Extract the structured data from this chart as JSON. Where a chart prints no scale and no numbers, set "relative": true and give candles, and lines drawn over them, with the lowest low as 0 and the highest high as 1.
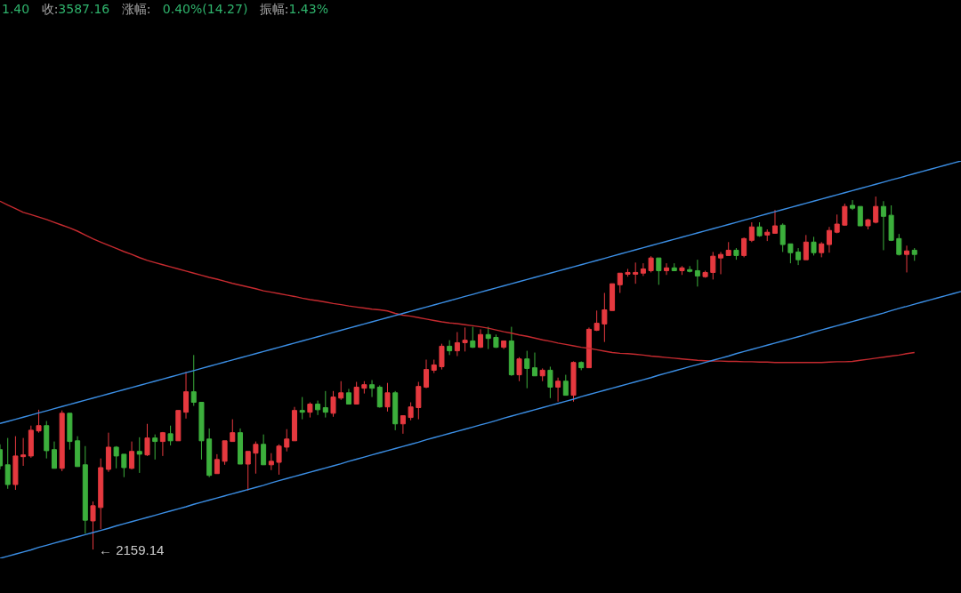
{
  "chart_data": {
    "type": "candlestick",
    "relative": true,
    "title": "1.40 收:3587.16 涨幅: 0.40%(14.27) 振幅:1.43%",
    "categories": [
      null,
      null,
      null,
      null,
      null,
      null,
      null,
      null,
      null,
      null,
      null,
      null,
      null,
      null,
      null,
      null,
      null,
      null,
      null,
      null,
      null,
      null,
      null,
      null,
      null,
      null,
      null,
      null,
      null,
      null,
      null,
      null,
      null,
      null,
      null,
      null,
      null,
      null,
      null,
      null,
      null,
      null,
      null,
      null,
      null,
      null,
      null,
      null,
      null,
      null,
      null,
      null,
      null,
      null,
      null,
      null,
      null,
      null,
      null,
      null,
      null,
      null,
      null,
      null,
      null,
      null,
      null,
      null,
      null,
      null,
      null,
      null,
      null,
      null,
      null,
      null,
      null,
      null,
      null,
      null,
      null,
      null,
      null,
      null,
      null,
      null,
      null,
      null,
      null,
      null,
      null,
      null,
      null,
      null,
      null,
      null,
      null,
      null,
      null,
      null,
      null,
      null,
      null,
      null,
      null,
      null,
      null,
      null,
      null,
      null,
      null,
      null,
      null,
      null,
      null,
      null,
      null,
      null,
      null,
      null,
      null,
      null,
      null,
      null,
      null
    ],
    "ohlc": [
      [
        0.283,
        0.298,
        0.227,
        0.237
      ],
      [
        0.24,
        0.316,
        0.172,
        0.184
      ],
      [
        0.184,
        0.321,
        0.169,
        0.265
      ],
      [
        0.263,
        0.316,
        0.237,
        0.268
      ],
      [
        0.265,
        0.351,
        0.26,
        0.338
      ],
      [
        0.336,
        0.396,
        0.331,
        0.351
      ],
      [
        0.351,
        0.364,
        0.258,
        0.28
      ],
      [
        0.283,
        0.306,
        0.23,
        0.23
      ],
      [
        0.23,
        0.394,
        0.222,
        0.386
      ],
      [
        0.386,
        0.386,
        0.283,
        0.306
      ],
      [
        0.308,
        0.321,
        0.235,
        0.235
      ],
      [
        0.24,
        0.293,
        0.045,
        0.083
      ],
      [
        0.081,
        0.136,
        0,
        0.124
      ],
      [
        0.119,
        0.258,
        0.058,
        0.232
      ],
      [
        0.227,
        0.331,
        0.22,
        0.29
      ],
      [
        0.29,
        0.293,
        0.23,
        0.265
      ],
      [
        0.27,
        0.27,
        0.205,
        0.232
      ],
      [
        0.23,
        0.306,
        0.227,
        0.278
      ],
      [
        0.278,
        0.318,
        0.217,
        0.27
      ],
      [
        0.268,
        0.356,
        0.265,
        0.316
      ],
      [
        0.316,
        0.326,
        0.255,
        0.306
      ],
      [
        0.306,
        0.333,
        0.265,
        0.331
      ],
      [
        0.328,
        0.351,
        0.295,
        0.308
      ],
      [
        0.308,
        0.394,
        0.308,
        0.394
      ],
      [
        0.389,
        0.503,
        0.371,
        0.447
      ],
      [
        0.447,
        0.551,
        0.407,
        0.417
      ],
      [
        0.417,
        0.417,
        0.255,
        0.308
      ],
      [
        0.313,
        0.343,
        0.205,
        0.21
      ],
      [
        0.215,
        0.27,
        0.215,
        0.255
      ],
      [
        0.25,
        0.308,
        0.24,
        0.308
      ],
      [
        0.306,
        0.369,
        0.306,
        0.331
      ],
      [
        0.331,
        0.343,
        0.242,
        0.242
      ],
      [
        0.242,
        0.278,
        0.167,
        0.278
      ],
      [
        0.273,
        0.306,
        0.215,
        0.298
      ],
      [
        0.298,
        0.326,
        0.24,
        0.24
      ],
      [
        0.24,
        0.273,
        0.225,
        0.25
      ],
      [
        0.247,
        0.298,
        0.212,
        0.293
      ],
      [
        0.29,
        0.341,
        0.278,
        0.313
      ],
      [
        0.308,
        0.404,
        0.308,
        0.394
      ],
      [
        0.394,
        0.432,
        0.369,
        0.389
      ],
      [
        0.389,
        0.417,
        0.374,
        0.412
      ],
      [
        0.412,
        0.422,
        0.381,
        0.396
      ],
      [
        0.402,
        0.449,
        0.374,
        0.389
      ],
      [
        0.386,
        0.449,
        0.376,
        0.432
      ],
      [
        0.429,
        0.477,
        0.424,
        0.444
      ],
      [
        0.444,
        0.455,
        0.412,
        0.412
      ],
      [
        0.412,
        0.475,
        0.412,
        0.46
      ],
      [
        0.457,
        0.477,
        0.442,
        0.467
      ],
      [
        0.467,
        0.48,
        0.432,
        0.457
      ],
      [
        0.46,
        0.465,
        0.402,
        0.404
      ],
      [
        0.404,
        0.472,
        0.391,
        0.444
      ],
      [
        0.444,
        0.449,
        0.338,
        0.356
      ],
      [
        0.356,
        0.379,
        0.328,
        0.379
      ],
      [
        0.374,
        0.417,
        0.366,
        0.404
      ],
      [
        0.402,
        0.475,
        0.369,
        0.462
      ],
      [
        0.46,
        0.538,
        0.457,
        0.51
      ],
      [
        0.508,
        0.538,
        0.5,
        0.523
      ],
      [
        0.518,
        0.583,
        0.51,
        0.576
      ],
      [
        0.576,
        0.593,
        0.551,
        0.563
      ],
      [
        0.563,
        0.616,
        0.548,
        0.586
      ],
      [
        0.586,
        0.629,
        0.561,
        0.593
      ],
      [
        0.591,
        0.631,
        0.571,
        0.573
      ],
      [
        0.573,
        0.624,
        0.571,
        0.609
      ],
      [
        0.609,
        0.631,
        0.568,
        0.598
      ],
      [
        0.601,
        0.609,
        0.571,
        0.573
      ],
      [
        0.573,
        0.591,
        0.568,
        0.591
      ],
      [
        0.591,
        0.631,
        0.492,
        0.495
      ],
      [
        0.495,
        0.545,
        0.477,
        0.54
      ],
      [
        0.54,
        0.563,
        0.457,
        0.513
      ],
      [
        0.515,
        0.558,
        0.492,
        0.492
      ],
      [
        0.492,
        0.513,
        0.477,
        0.508
      ],
      [
        0.508,
        0.518,
        0.429,
        0.46
      ],
      [
        0.46,
        0.487,
        0.419,
        0.477
      ],
      [
        0.477,
        0.495,
        0.437,
        0.437
      ],
      [
        0.437,
        0.533,
        0.419,
        0.53
      ],
      [
        0.53,
        0.533,
        0.508,
        0.515
      ],
      [
        0.515,
        0.629,
        0.515,
        0.624
      ],
      [
        0.621,
        0.677,
        0.619,
        0.641
      ],
      [
        0.639,
        0.727,
        0.588,
        0.679
      ],
      [
        0.677,
        0.753,
        0.677,
        0.753
      ],
      [
        0.75,
        0.783,
        0.727,
        0.783
      ],
      [
        0.78,
        0.795,
        0.773,
        0.785
      ],
      [
        0.78,
        0.813,
        0.753,
        0.785
      ],
      [
        0.783,
        0.811,
        0.775,
        0.795
      ],
      [
        0.79,
        0.831,
        0.785,
        0.826
      ],
      [
        0.826,
        0.826,
        0.75,
        0.79
      ],
      [
        0.79,
        0.811,
        0.778,
        0.798
      ],
      [
        0.798,
        0.811,
        0.79,
        0.79
      ],
      [
        0.79,
        0.803,
        0.778,
        0.798
      ],
      [
        0.793,
        0.803,
        0.785,
        0.788
      ],
      [
        0.79,
        0.821,
        0.745,
        0.775
      ],
      [
        0.773,
        0.79,
        0.77,
        0.785
      ],
      [
        0.785,
        0.843,
        0.765,
        0.831
      ],
      [
        0.826,
        0.843,
        0.78,
        0.836
      ],
      [
        0.833,
        0.871,
        0.833,
        0.848
      ],
      [
        0.848,
        0.854,
        0.821,
        0.833
      ],
      [
        0.833,
        0.884,
        0.828,
        0.881
      ],
      [
        0.876,
        0.927,
        0.871,
        0.914
      ],
      [
        0.914,
        0.927,
        0.886,
        0.889
      ],
      [
        0.891,
        0.907,
        0.874,
        0.899
      ],
      [
        0.896,
        0.962,
        0.896,
        0.917
      ],
      [
        0.919,
        0.924,
        0.843,
        0.864
      ],
      [
        0.866,
        0.866,
        0.811,
        0.841
      ],
      [
        0.843,
        0.854,
        0.806,
        0.821
      ],
      [
        0.821,
        0.891,
        0.821,
        0.871
      ],
      [
        0.871,
        0.886,
        0.833,
        0.841
      ],
      [
        0.841,
        0.871,
        0.828,
        0.866
      ],
      [
        0.864,
        0.914,
        0.841,
        0.904
      ],
      [
        0.899,
        0.949,
        0.896,
        0.922
      ],
      [
        0.919,
        0.98,
        0.917,
        0.972
      ],
      [
        0.975,
        0.99,
        0.962,
        0.967
      ],
      [
        0.972,
        0.972,
        0.917,
        0.917
      ],
      [
        0.917,
        0.937,
        0.907,
        0.934
      ],
      [
        0.927,
        1,
        0.924,
        0.972
      ],
      [
        0.972,
        0.987,
        0.848,
        0.944
      ],
      [
        0.947,
        0.975,
        0.874,
        0.876
      ],
      [
        0.881,
        0.894,
        0.833,
        0.836
      ],
      [
        0.836,
        0.861,
        0.785,
        0.846
      ],
      [
        0.848,
        0.854,
        0.818,
        0.836
      ],
      null,
      null,
      null,
      null,
      null,
      null
    ],
    "colors": [
      "#3caf3c",
      "#3caf3c",
      "#e5393f",
      "#e5393f",
      "#e5393f",
      "#e5393f",
      "#3caf3c",
      "#3caf3c",
      "#e5393f",
      "#3caf3c",
      "#3caf3c",
      "#3caf3c",
      "#e5393f",
      "#e5393f",
      "#e5393f",
      "#3caf3c",
      "#3caf3c",
      "#e5393f",
      "#3caf3c",
      "#e5393f",
      "#3caf3c",
      "#e5393f",
      "#3caf3c",
      "#e5393f",
      "#e5393f",
      "#3caf3c",
      "#3caf3c",
      "#3caf3c",
      "#e5393f",
      "#e5393f",
      "#e5393f",
      "#3caf3c",
      "#e5393f",
      "#e5393f",
      "#3caf3c",
      "#e5393f",
      "#e5393f",
      "#e5393f",
      "#e5393f",
      "#3caf3c",
      "#e5393f",
      "#3caf3c",
      "#3caf3c",
      "#e5393f",
      "#e5393f",
      "#3caf3c",
      "#e5393f",
      "#e5393f",
      "#3caf3c",
      "#3caf3c",
      "#e5393f",
      "#3caf3c",
      "#e5393f",
      "#e5393f",
      "#e5393f",
      "#e5393f",
      "#e5393f",
      "#e5393f",
      "#3caf3c",
      "#e5393f",
      "#e5393f",
      "#3caf3c",
      "#e5393f",
      "#3caf3c",
      "#3caf3c",
      "#e5393f",
      "#3caf3c",
      "#e5393f",
      "#3caf3c",
      "#3caf3c",
      "#e5393f",
      "#3caf3c",
      "#e5393f",
      "#3caf3c",
      "#e5393f",
      "#3caf3c",
      "#e5393f",
      "#e5393f",
      "#e5393f",
      "#e5393f",
      "#e5393f",
      "#e5393f",
      "#e5393f",
      "#e5393f",
      "#e5393f",
      "#3caf3c",
      "#e5393f",
      "#3caf3c",
      "#e5393f",
      "#3caf3c",
      "#3caf3c",
      "#e5393f",
      "#e5393f",
      "#e5393f",
      "#e5393f",
      "#3caf3c",
      "#e5393f",
      "#e5393f",
      "#3caf3c",
      "#e5393f",
      "#e5393f",
      "#3caf3c",
      "#3caf3c",
      "#3caf3c",
      "#e5393f",
      "#3caf3c",
      "#e5393f",
      "#e5393f",
      "#e5393f",
      "#e5393f",
      "#3caf3c",
      "#3caf3c",
      "#e5393f",
      "#e5393f",
      "#3caf3c",
      "#3caf3c",
      "#3caf3c",
      "#e5393f",
      "#3caf3c",
      null,
      null,
      null,
      null,
      null,
      null
    ],
    "series": [
      {
        "type": "line",
        "color": "#c42a2f",
        "values": [
          0.987,
          0.976,
          0.966,
          0.955,
          0.949,
          0.942,
          0.935,
          0.927,
          0.919,
          0.911,
          0.902,
          0.891,
          0.88,
          0.871,
          0.862,
          0.853,
          0.844,
          0.836,
          0.827,
          0.819,
          0.813,
          0.807,
          0.801,
          0.795,
          0.789,
          0.783,
          0.777,
          0.771,
          0.766,
          0.76,
          0.754,
          0.749,
          0.744,
          0.739,
          0.733,
          0.729,
          0.725,
          0.721,
          0.717,
          0.712,
          0.708,
          0.705,
          0.701,
          0.697,
          0.694,
          0.69,
          0.687,
          0.684,
          0.681,
          0.679,
          0.676,
          0.669,
          0.664,
          0.661,
          0.657,
          0.653,
          0.649,
          0.645,
          0.642,
          0.64,
          0.637,
          0.634,
          0.631,
          0.627,
          0.622,
          0.617,
          0.613,
          0.608,
          0.604,
          0.599,
          0.594,
          0.59,
          0.585,
          0.581,
          0.577,
          0.573,
          0.57,
          0.566,
          0.562,
          0.558,
          0.556,
          0.555,
          0.553,
          0.551,
          0.548,
          0.546,
          0.544,
          0.542,
          0.54,
          0.538,
          0.536,
          0.535,
          0.534,
          0.534,
          0.533,
          0.533,
          0.532,
          0.532,
          0.531,
          0.531,
          0.53,
          0.53,
          0.53,
          0.53,
          0.53,
          0.53,
          0.53,
          0.531,
          0.532,
          0.532,
          0.533,
          0.536,
          0.539,
          0.542,
          0.545,
          0.548,
          0.551,
          0.555,
          0.558,
          null,
          null,
          null,
          null,
          null,
          null
        ]
      },
      {
        "type": "line",
        "color": "#3b8ee4",
        "values": [
          0.357,
          0.363,
          0.369,
          0.375,
          0.381,
          0.387,
          0.393,
          0.399,
          0.405,
          0.411,
          0.417,
          0.423,
          0.429,
          0.435,
          0.441,
          0.447,
          0.453,
          0.459,
          0.465,
          0.471,
          0.477,
          0.483,
          0.489,
          0.495,
          0.501,
          0.507,
          0.513,
          0.519,
          0.525,
          0.531,
          0.537,
          0.543,
          0.549,
          0.555,
          0.561,
          0.567,
          0.573,
          0.579,
          0.585,
          0.591,
          0.597,
          0.603,
          0.609,
          0.615,
          0.621,
          0.627,
          0.633,
          0.639,
          0.645,
          0.651,
          0.657,
          0.663,
          0.669,
          0.675,
          0.681,
          0.687,
          0.693,
          0.699,
          0.705,
          0.711,
          0.717,
          0.723,
          0.729,
          0.735,
          0.741,
          0.747,
          0.753,
          0.759,
          0.765,
          0.771,
          0.777,
          0.783,
          0.789,
          0.795,
          0.801,
          0.807,
          0.813,
          0.819,
          0.825,
          0.831,
          0.837,
          0.843,
          0.849,
          0.855,
          0.861,
          0.867,
          0.873,
          0.879,
          0.885,
          0.891,
          0.897,
          0.903,
          0.909,
          0.915,
          0.921,
          0.927,
          0.933,
          0.939,
          0.945,
          0.951,
          0.957,
          0.963,
          0.969,
          0.975,
          0.981,
          0.987,
          0.993,
          0.999,
          1.005,
          1.011,
          1.017,
          1.023,
          1.029,
          1.035,
          1.041,
          1.047,
          1.053,
          1.059,
          1.065,
          1.071,
          1.077,
          1.083,
          1.089,
          1.095,
          1.101
        ]
      },
      {
        "type": "line",
        "color": "#3b8ee4",
        "values": [
          -0.025,
          -0.019,
          -0.013,
          -0.007,
          -0.001,
          0.006,
          0.012,
          0.018,
          0.024,
          0.03,
          0.036,
          0.042,
          0.048,
          0.054,
          0.06,
          0.067,
          0.073,
          0.079,
          0.085,
          0.091,
          0.097,
          0.103,
          0.109,
          0.115,
          0.121,
          0.128,
          0.134,
          0.14,
          0.146,
          0.152,
          0.158,
          0.164,
          0.17,
          0.176,
          0.182,
          0.189,
          0.195,
          0.201,
          0.207,
          0.213,
          0.219,
          0.225,
          0.231,
          0.237,
          0.243,
          0.25,
          0.256,
          0.262,
          0.268,
          0.274,
          0.28,
          0.286,
          0.292,
          0.298,
          0.304,
          0.311,
          0.317,
          0.323,
          0.329,
          0.335,
          0.341,
          0.347,
          0.353,
          0.359,
          0.365,
          0.372,
          0.378,
          0.384,
          0.39,
          0.396,
          0.402,
          0.408,
          0.414,
          0.42,
          0.426,
          0.433,
          0.439,
          0.445,
          0.451,
          0.457,
          0.463,
          0.469,
          0.475,
          0.481,
          0.487,
          0.494,
          0.5,
          0.506,
          0.512,
          0.518,
          0.524,
          0.53,
          0.536,
          0.542,
          0.548,
          0.555,
          0.561,
          0.567,
          0.573,
          0.579,
          0.585,
          0.591,
          0.597,
          0.603,
          0.609,
          0.616,
          0.622,
          0.628,
          0.634,
          0.64,
          0.646,
          0.652,
          0.658,
          0.664,
          0.67,
          0.677,
          0.683,
          0.689,
          0.695,
          0.701,
          0.707,
          0.713,
          0.719,
          0.725,
          0.731
        ]
      }
    ],
    "annotations": [
      "← 2159.14"
    ]
  }
}
